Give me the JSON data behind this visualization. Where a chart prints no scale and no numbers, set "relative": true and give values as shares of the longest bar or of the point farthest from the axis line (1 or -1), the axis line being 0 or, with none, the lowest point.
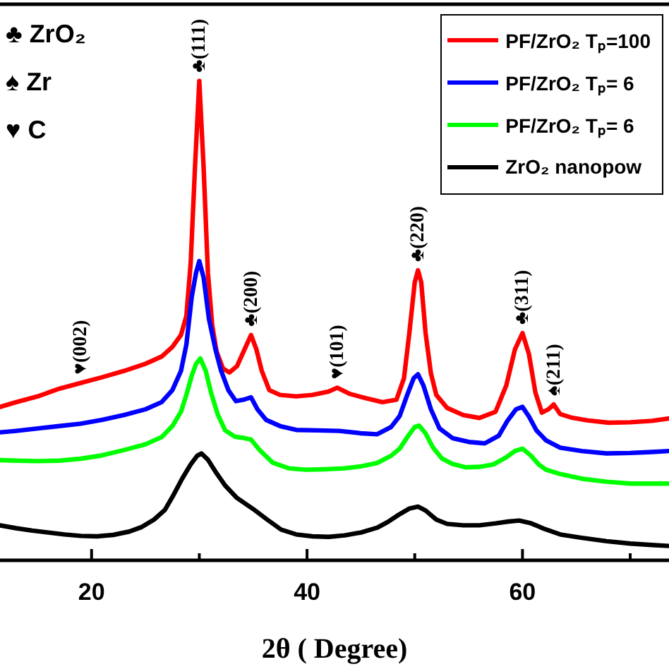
{
  "chart_data": {
    "type": "line",
    "relative": true,
    "xlabel": "2θ ( Degree)",
    "xlim": [
      11.5,
      73.6
    ],
    "xticks": [
      20,
      {
        "value": 30,
        "label": null
      },
      40,
      {
        "value": 50,
        "label": null
      },
      60,
      {
        "value": 70,
        "label": null
      }
    ],
    "tick_labels": "x",
    "legend": "top right",
    "annotations": [
      "♣ ZrO₂",
      "♠ Zr",
      "♥ C",
      {
        "text": "♥(002)",
        "x": 19,
        "y": 0.37
      },
      {
        "text": "♣(111)",
        "x": 30.0,
        "y": 1.0
      },
      {
        "text": "♣(200)",
        "x": 34.8,
        "y": 0.47
      },
      {
        "text": "♥(101)",
        "x": 42.8,
        "y": 0.36
      },
      {
        "text": "♣(220)",
        "x": 50.3,
        "y": 0.605
      },
      {
        "text": "♣(311)",
        "x": 60.0,
        "y": 0.474
      },
      {
        "text": "♠(211)",
        "x": 62.9,
        "y": 0.325
      }
    ],
    "series": [
      {
        "name": "PF/ZrO₂ Tₚ=100",
        "color": "#ff0000",
        "x": [
          11.5,
          13,
          15,
          17,
          19,
          21,
          23,
          25,
          26.5,
          27.5,
          28.3,
          28.8,
          29.2,
          29.6,
          30.0,
          30.4,
          30.8,
          31.2,
          31.6,
          32.2,
          32.8,
          33.5,
          34.2,
          34.8,
          35.3,
          35.8,
          36.5,
          37.5,
          39,
          40.5,
          42,
          42.8,
          44,
          45.5,
          47,
          48.3,
          49.0,
          49.5,
          50.0,
          50.3,
          50.6,
          51.0,
          51.5,
          52.0,
          53,
          54.5,
          56,
          57.5,
          58.5,
          59.3,
          60.0,
          60.6,
          61.2,
          61.8,
          62.4,
          62.9,
          63.5,
          64.5,
          66,
          68,
          70,
          72,
          73.6
        ],
        "values": [
          0.32,
          0.33,
          0.342,
          0.358,
          0.37,
          0.382,
          0.395,
          0.41,
          0.425,
          0.445,
          0.47,
          0.51,
          0.62,
          0.82,
          1.0,
          0.82,
          0.6,
          0.49,
          0.436,
          0.4,
          0.392,
          0.405,
          0.44,
          0.47,
          0.44,
          0.395,
          0.355,
          0.345,
          0.342,
          0.345,
          0.352,
          0.36,
          0.347,
          0.338,
          0.33,
          0.335,
          0.38,
          0.475,
          0.58,
          0.605,
          0.58,
          0.475,
          0.39,
          0.345,
          0.318,
          0.303,
          0.297,
          0.31,
          0.365,
          0.44,
          0.474,
          0.43,
          0.35,
          0.308,
          0.315,
          0.325,
          0.305,
          0.298,
          0.292,
          0.287,
          0.288,
          0.291,
          0.296
        ]
      },
      {
        "name": "PF/ZrO₂ Tₚ= 6",
        "color": "#0000ff",
        "x": [
          11.5,
          13,
          15,
          17,
          19,
          21,
          23,
          25,
          26.5,
          27.5,
          28.3,
          28.8,
          29.3,
          29.7,
          30.0,
          30.4,
          30.9,
          31.5,
          32.0,
          32.7,
          33.4,
          34.1,
          34.8,
          35.4,
          36.2,
          37.5,
          39,
          41,
          43,
          45,
          46.5,
          47.8,
          48.6,
          49.3,
          49.9,
          50.3,
          50.8,
          51.5,
          52.3,
          53.5,
          55,
          56.5,
          57.8,
          58.6,
          59.4,
          60.0,
          60.6,
          61.3,
          62.2,
          63.5,
          65.5,
          67.8,
          70,
          72,
          73.6
        ],
        "values": [
          0.267,
          0.27,
          0.275,
          0.28,
          0.285,
          0.293,
          0.303,
          0.315,
          0.33,
          0.355,
          0.395,
          0.45,
          0.55,
          0.6,
          0.624,
          0.59,
          0.503,
          0.44,
          0.397,
          0.355,
          0.332,
          0.335,
          0.34,
          0.315,
          0.293,
          0.28,
          0.272,
          0.271,
          0.27,
          0.265,
          0.263,
          0.278,
          0.301,
          0.345,
          0.38,
          0.388,
          0.365,
          0.315,
          0.275,
          0.255,
          0.247,
          0.244,
          0.26,
          0.291,
          0.315,
          0.32,
          0.3,
          0.271,
          0.25,
          0.235,
          0.228,
          0.223,
          0.224,
          0.226,
          0.228
        ]
      },
      {
        "name": "PF/ZrO₂ Tₚ= 6",
        "color": "#00ff00",
        "x": [
          11.5,
          13,
          15,
          17,
          19,
          21,
          23,
          25,
          26.5,
          27.5,
          28.3,
          28.8,
          29.3,
          29.7,
          30.1,
          30.6,
          31.1,
          31.7,
          32.4,
          33.3,
          34.2,
          34.8,
          35.6,
          36.8,
          38.3,
          39.9,
          41.6,
          43.5,
          45,
          46.5,
          47.8,
          48.6,
          49.4,
          50.0,
          50.4,
          51.0,
          51.7,
          52.5,
          53.5,
          54.7,
          56,
          57.3,
          58.5,
          59.3,
          60.0,
          60.8,
          61.5,
          62.2,
          63.5,
          65.6,
          67.8,
          70.0,
          72,
          73.6
        ],
        "values": [
          0.209,
          0.208,
          0.207,
          0.208,
          0.212,
          0.219,
          0.23,
          0.242,
          0.257,
          0.28,
          0.31,
          0.345,
          0.385,
          0.41,
          0.421,
          0.395,
          0.349,
          0.305,
          0.271,
          0.258,
          0.255,
          0.252,
          0.23,
          0.204,
          0.192,
          0.189,
          0.19,
          0.192,
          0.196,
          0.203,
          0.218,
          0.233,
          0.26,
          0.278,
          0.281,
          0.265,
          0.235,
          0.213,
          0.201,
          0.194,
          0.195,
          0.2,
          0.215,
          0.228,
          0.233,
          0.218,
          0.2,
          0.189,
          0.18,
          0.17,
          0.164,
          0.16,
          0.16,
          0.16
        ]
      },
      {
        "name": "ZrO₂  nanopow",
        "color": "#000000",
        "x": [
          11.5,
          13,
          14.5,
          16,
          17.5,
          19,
          20.5,
          22,
          23.5,
          24.6,
          25.8,
          26.8,
          27.6,
          28.4,
          29.2,
          29.8,
          30.2,
          30.8,
          31.5,
          32.4,
          33.5,
          35.0,
          36.3,
          37.6,
          39,
          40.5,
          42,
          43.5,
          45,
          46.5,
          47.5,
          48.5,
          49.5,
          50.3,
          51.0,
          52.0,
          53,
          54.5,
          56,
          57.5,
          58.7,
          59.7,
          60.7,
          62,
          63.5,
          65.5,
          67.8,
          70,
          72,
          73.6
        ],
        "values": [
          0.073,
          0.067,
          0.062,
          0.058,
          0.054,
          0.051,
          0.05,
          0.053,
          0.06,
          0.069,
          0.085,
          0.105,
          0.136,
          0.17,
          0.2,
          0.218,
          0.223,
          0.21,
          0.185,
          0.156,
          0.13,
          0.107,
          0.085,
          0.064,
          0.054,
          0.05,
          0.049,
          0.052,
          0.058,
          0.068,
          0.08,
          0.095,
          0.108,
          0.112,
          0.104,
          0.085,
          0.076,
          0.073,
          0.073,
          0.077,
          0.081,
          0.083,
          0.078,
          0.066,
          0.054,
          0.047,
          0.04,
          0.035,
          0.032,
          0.03
        ]
      }
    ]
  }
}
